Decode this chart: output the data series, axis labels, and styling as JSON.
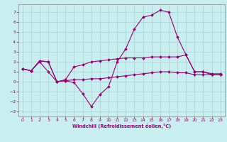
{
  "xlabel": "Windchill (Refroidissement éolien,°C)",
  "background_color": "#c8eef0",
  "grid_color": "#aacfcf",
  "line_color": "#990077",
  "xlim": [
    -0.5,
    23.5
  ],
  "ylim": [
    -3.5,
    7.8
  ],
  "yticks": [
    -3,
    -2,
    -1,
    0,
    1,
    2,
    3,
    4,
    5,
    6,
    7
  ],
  "xticks": [
    0,
    1,
    2,
    3,
    4,
    5,
    6,
    7,
    8,
    9,
    10,
    11,
    12,
    13,
    14,
    15,
    16,
    17,
    18,
    19,
    20,
    21,
    22,
    23
  ],
  "line1_x": [
    0,
    1,
    2,
    3,
    4,
    5,
    6,
    7,
    8,
    9,
    10,
    11,
    12,
    13,
    14,
    15,
    16,
    17,
    18,
    19,
    20,
    21,
    22,
    23
  ],
  "line1_y": [
    1.3,
    1.1,
    2.0,
    1.0,
    0.0,
    0.1,
    -0.1,
    -1.2,
    -2.5,
    -1.3,
    -0.5,
    2.0,
    3.3,
    5.3,
    6.5,
    6.7,
    7.2,
    7.0,
    4.5,
    2.7,
    1.0,
    1.0,
    0.7,
    0.7
  ],
  "line2_x": [
    0,
    1,
    2,
    3,
    4,
    5,
    6,
    7,
    8,
    9,
    10,
    11,
    12,
    13,
    14,
    15,
    16,
    17,
    18,
    19,
    20,
    21,
    22,
    23
  ],
  "line2_y": [
    1.3,
    1.1,
    2.1,
    2.0,
    0.0,
    0.1,
    0.2,
    0.2,
    0.3,
    0.3,
    0.4,
    0.5,
    0.6,
    0.7,
    0.8,
    0.9,
    1.0,
    1.0,
    0.9,
    0.9,
    0.7,
    0.7,
    0.7,
    0.7
  ],
  "line3_x": [
    0,
    1,
    2,
    3,
    4,
    5,
    6,
    7,
    8,
    9,
    10,
    11,
    12,
    13,
    14,
    15,
    16,
    17,
    18,
    19,
    20,
    21,
    22,
    23
  ],
  "line3_y": [
    1.3,
    1.1,
    2.1,
    2.0,
    0.0,
    0.2,
    1.5,
    1.7,
    2.0,
    2.1,
    2.2,
    2.3,
    2.4,
    2.4,
    2.4,
    2.5,
    2.5,
    2.5,
    2.5,
    2.7,
    1.0,
    1.0,
    0.8,
    0.8
  ]
}
